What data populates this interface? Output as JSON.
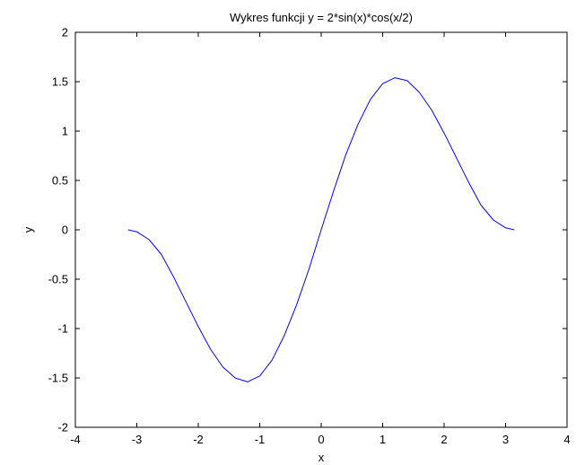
{
  "chart_data": {
    "type": "line",
    "title": "Wykres funkcji y = 2*sin(x)*cos(x/2)",
    "xlabel": "x",
    "ylabel": "y",
    "xlim": [
      -4,
      4
    ],
    "ylim": [
      -2,
      2
    ],
    "x_ticks": [
      -4,
      -3,
      -2,
      -1,
      0,
      1,
      2,
      3,
      4
    ],
    "y_ticks": [
      -2,
      -1.5,
      -1,
      -0.5,
      0,
      0.5,
      1,
      1.5,
      2
    ],
    "x_tick_labels": [
      "-4",
      "-3",
      "-2",
      "-1",
      "0",
      "1",
      "2",
      "3",
      "4"
    ],
    "y_tick_labels": [
      "-2",
      "-1.5",
      "-1",
      "-0.5",
      "0",
      "0.5",
      "1",
      "1.5",
      "2"
    ],
    "grid": false,
    "series": [
      {
        "color": "#0000ff",
        "x": [
          -3.1416,
          -3.0,
          -2.8,
          -2.6,
          -2.4,
          -2.2,
          -2.0,
          -1.8,
          -1.6,
          -1.4,
          -1.2,
          -1.0,
          -0.8,
          -0.6,
          -0.4,
          -0.2,
          0.0,
          0.2,
          0.4,
          0.6,
          0.8,
          1.0,
          1.2,
          1.4,
          1.6,
          1.8,
          2.0,
          2.2,
          2.4,
          2.6,
          2.8,
          3.0,
          3.1416
        ],
        "y": [
          0.0,
          -0.02,
          -0.1,
          -0.25,
          -0.48,
          -0.73,
          -0.98,
          -1.21,
          -1.39,
          -1.5,
          -1.54,
          -1.48,
          -1.32,
          -1.07,
          -0.76,
          -0.4,
          0.0,
          0.39,
          0.76,
          1.07,
          1.32,
          1.48,
          1.54,
          1.51,
          1.39,
          1.21,
          0.98,
          0.73,
          0.48,
          0.25,
          0.1,
          0.02,
          0.0
        ]
      }
    ]
  }
}
